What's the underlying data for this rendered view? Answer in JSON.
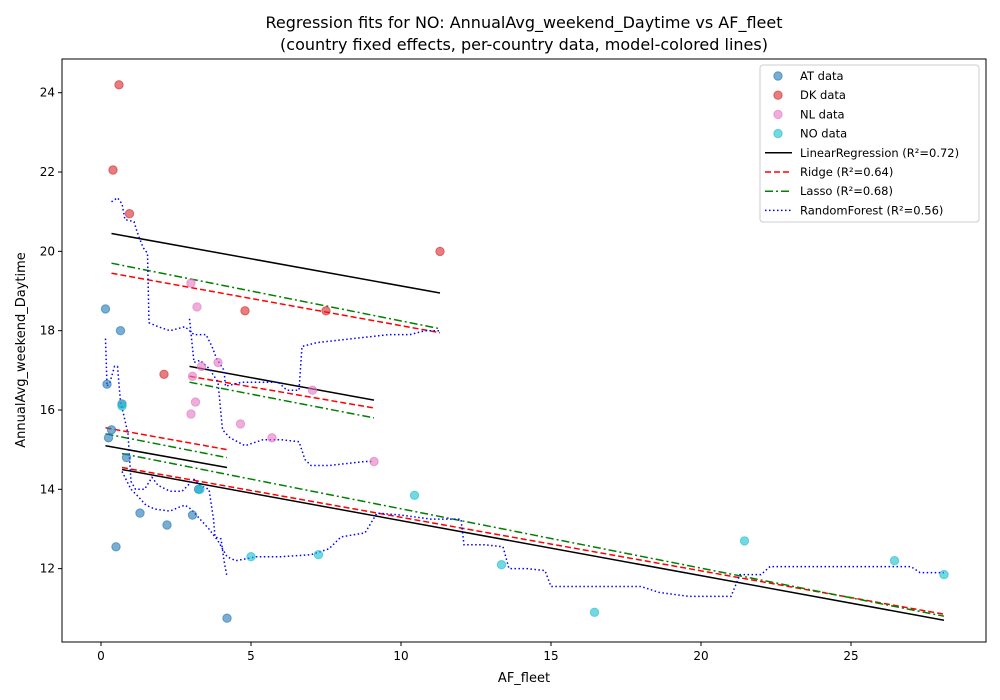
{
  "chart_data": {
    "type": "scatter",
    "title": "Regression fits for NO: AnnualAvg_weekend_Daytime vs AF_fleet",
    "subtitle": "(country fixed effects, per-country data, model-colored lines)",
    "xlabel": "AF_fleet",
    "ylabel": "AnnualAvg_weekend_Daytime",
    "xlim": [
      -1.3,
      29.5
    ],
    "ylim": [
      10.15,
      24.85
    ],
    "xticks": [
      0,
      5,
      10,
      15,
      20,
      25
    ],
    "yticks": [
      12,
      14,
      16,
      18,
      20,
      22,
      24
    ],
    "grid": false,
    "legend_position": "top-right",
    "colors": {
      "AT": "#1f77b4",
      "DK": "#d62728",
      "NL": "#e377c2",
      "NO": "#17becf",
      "LinearRegression": "#000000",
      "Ridge": "#ff0000",
      "Lasso": "#008000",
      "RandomForest": "#0000ff"
    },
    "scatter_series": [
      {
        "name": "AT data",
        "key": "AT",
        "points": [
          [
            0.15,
            18.55
          ],
          [
            0.65,
            18.0
          ],
          [
            0.2,
            16.65
          ],
          [
            0.7,
            16.15
          ],
          [
            0.25,
            15.3
          ],
          [
            0.35,
            15.5
          ],
          [
            0.85,
            14.8
          ],
          [
            0.5,
            12.55
          ],
          [
            1.3,
            13.4
          ],
          [
            2.2,
            13.1
          ],
          [
            3.05,
            13.35
          ],
          [
            3.25,
            14.0
          ],
          [
            4.2,
            10.75
          ]
        ]
      },
      {
        "name": "DK data",
        "key": "DK",
        "points": [
          [
            0.6,
            24.2
          ],
          [
            0.4,
            22.05
          ],
          [
            0.95,
            20.95
          ],
          [
            11.3,
            20.0
          ],
          [
            2.1,
            16.9
          ],
          [
            4.8,
            18.5
          ],
          [
            7.5,
            18.5
          ]
        ]
      },
      {
        "name": "NL data",
        "key": "NL",
        "points": [
          [
            3.0,
            19.2
          ],
          [
            3.2,
            18.6
          ],
          [
            3.35,
            17.1
          ],
          [
            3.9,
            17.2
          ],
          [
            3.05,
            16.85
          ],
          [
            3.15,
            16.2
          ],
          [
            3.0,
            15.9
          ],
          [
            4.65,
            15.65
          ],
          [
            5.7,
            15.3
          ],
          [
            7.05,
            16.5
          ],
          [
            9.1,
            14.7
          ]
        ]
      },
      {
        "name": "NO data",
        "key": "NO",
        "points": [
          [
            0.7,
            16.1
          ],
          [
            3.3,
            14.0
          ],
          [
            5.0,
            12.3
          ],
          [
            7.25,
            12.35
          ],
          [
            10.45,
            13.85
          ],
          [
            13.35,
            12.1
          ],
          [
            16.45,
            10.9
          ],
          [
            21.45,
            12.7
          ],
          [
            26.45,
            12.2
          ],
          [
            28.1,
            11.85
          ]
        ]
      }
    ],
    "line_series": [
      {
        "name": "LinearRegression (R²=0.72)",
        "key": "LinearRegression",
        "dash": "solid",
        "segments": [
          [
            [
              0.35,
              20.45
            ],
            [
              11.3,
              18.95
            ]
          ],
          [
            [
              2.95,
              17.1
            ],
            [
              9.1,
              16.25
            ]
          ],
          [
            [
              0.15,
              15.1
            ],
            [
              4.2,
              14.55
            ]
          ],
          [
            [
              0.7,
              14.5
            ],
            [
              28.1,
              10.7
            ]
          ]
        ]
      },
      {
        "name": "Ridge (R²=0.64)",
        "key": "Ridge",
        "dash": "dashed",
        "segments": [
          [
            [
              0.35,
              19.45
            ],
            [
              11.3,
              17.95
            ]
          ],
          [
            [
              2.95,
              16.85
            ],
            [
              9.1,
              16.05
            ]
          ],
          [
            [
              0.15,
              15.55
            ],
            [
              4.2,
              15.0
            ]
          ],
          [
            [
              0.7,
              14.55
            ],
            [
              28.1,
              10.85
            ]
          ]
        ]
      },
      {
        "name": "Lasso (R²=0.68)",
        "key": "Lasso",
        "dash": "dashdot",
        "segments": [
          [
            [
              0.35,
              19.7
            ],
            [
              11.3,
              18.05
            ]
          ],
          [
            [
              2.95,
              16.7
            ],
            [
              9.1,
              15.8
            ]
          ],
          [
            [
              0.15,
              15.4
            ],
            [
              4.2,
              14.8
            ]
          ],
          [
            [
              0.7,
              14.9
            ],
            [
              28.1,
              10.8
            ]
          ]
        ]
      },
      {
        "name": "RandomForest (R²=0.56)",
        "key": "RandomForest",
        "dash": "dotted",
        "segments": [
          [
            [
              0.35,
              21.25
            ],
            [
              0.55,
              21.35
            ],
            [
              0.7,
              21.2
            ],
            [
              0.8,
              20.8
            ],
            [
              1.1,
              20.75
            ],
            [
              1.2,
              20.5
            ],
            [
              1.4,
              20.1
            ],
            [
              1.55,
              19.95
            ],
            [
              1.6,
              18.2
            ],
            [
              1.9,
              18.1
            ],
            [
              2.3,
              18.0
            ],
            [
              2.8,
              18.1
            ],
            [
              3.1,
              17.9
            ],
            [
              3.5,
              17.9
            ],
            [
              3.7,
              17.6
            ],
            [
              3.85,
              17.3
            ],
            [
              4.1,
              17.0
            ],
            [
              4.15,
              16.6
            ],
            [
              4.7,
              16.7
            ],
            [
              5.3,
              16.7
            ],
            [
              5.9,
              16.7
            ],
            [
              6.2,
              16.5
            ],
            [
              6.6,
              16.5
            ],
            [
              6.7,
              17.6
            ],
            [
              7.2,
              17.7
            ],
            [
              7.8,
              17.75
            ],
            [
              8.4,
              17.8
            ],
            [
              9.0,
              17.85
            ],
            [
              9.6,
              17.9
            ],
            [
              10.3,
              17.9
            ],
            [
              10.8,
              18.0
            ],
            [
              11.3,
              18.0
            ]
          ],
          [
            [
              2.95,
              18.3
            ],
            [
              3.1,
              17.2
            ],
            [
              3.3,
              17.25
            ],
            [
              3.6,
              17.05
            ],
            [
              3.9,
              16.7
            ],
            [
              4.05,
              15.5
            ],
            [
              4.3,
              15.3
            ],
            [
              4.8,
              15.1
            ],
            [
              5.4,
              15.25
            ],
            [
              6.0,
              15.25
            ],
            [
              6.6,
              15.2
            ],
            [
              6.8,
              14.75
            ],
            [
              7.0,
              14.6
            ],
            [
              7.6,
              14.6
            ],
            [
              8.2,
              14.65
            ],
            [
              8.8,
              14.7
            ],
            [
              9.1,
              14.7
            ]
          ],
          [
            [
              0.15,
              17.8
            ],
            [
              0.2,
              16.6
            ],
            [
              0.3,
              16.7
            ],
            [
              0.45,
              17.1
            ],
            [
              0.55,
              17.1
            ],
            [
              0.65,
              16.2
            ],
            [
              0.75,
              15.9
            ],
            [
              0.9,
              15.4
            ],
            [
              1.0,
              14.2
            ],
            [
              1.15,
              14.0
            ],
            [
              1.45,
              14.0
            ],
            [
              1.7,
              14.3
            ],
            [
              1.9,
              14.1
            ],
            [
              2.3,
              13.95
            ],
            [
              2.7,
              13.95
            ],
            [
              2.9,
              14.1
            ],
            [
              3.1,
              14.25
            ],
            [
              3.3,
              14.1
            ],
            [
              3.6,
              14.0
            ],
            [
              3.75,
              13.25
            ],
            [
              3.8,
              12.8
            ],
            [
              4.0,
              12.75
            ],
            [
              4.1,
              12.2
            ],
            [
              4.2,
              11.8
            ]
          ],
          [
            [
              0.7,
              14.45
            ],
            [
              1.0,
              14.0
            ],
            [
              1.2,
              13.85
            ],
            [
              1.5,
              13.6
            ],
            [
              1.8,
              13.5
            ],
            [
              2.3,
              13.45
            ],
            [
              2.6,
              13.55
            ],
            [
              2.8,
              13.6
            ],
            [
              3.0,
              13.5
            ],
            [
              3.3,
              13.25
            ],
            [
              3.6,
              13.0
            ],
            [
              3.9,
              12.7
            ],
            [
              4.2,
              12.3
            ],
            [
              4.5,
              12.2
            ],
            [
              5.2,
              12.3
            ],
            [
              6.0,
              12.3
            ],
            [
              7.0,
              12.35
            ],
            [
              7.6,
              12.5
            ],
            [
              8.0,
              12.8
            ],
            [
              8.8,
              12.9
            ],
            [
              9.2,
              13.4
            ],
            [
              10.0,
              13.35
            ],
            [
              11.0,
              13.25
            ],
            [
              12.0,
              13.25
            ],
            [
              12.1,
              12.6
            ],
            [
              12.8,
              12.6
            ],
            [
              13.4,
              12.55
            ],
            [
              13.6,
              12.0
            ],
            [
              14.2,
              12.0
            ],
            [
              14.8,
              11.95
            ],
            [
              15.0,
              11.55
            ],
            [
              16.0,
              11.55
            ],
            [
              17.0,
              11.55
            ],
            [
              18.0,
              11.55
            ],
            [
              18.6,
              11.4
            ],
            [
              19.6,
              11.3
            ],
            [
              20.6,
              11.3
            ],
            [
              21.0,
              11.3
            ],
            [
              21.3,
              11.85
            ],
            [
              22.0,
              11.85
            ],
            [
              22.3,
              12.05
            ],
            [
              23.5,
              12.05
            ],
            [
              25.0,
              12.05
            ],
            [
              26.5,
              12.05
            ],
            [
              27.0,
              12.05
            ],
            [
              27.3,
              11.9
            ],
            [
              28.1,
              11.9
            ]
          ]
        ]
      }
    ]
  }
}
